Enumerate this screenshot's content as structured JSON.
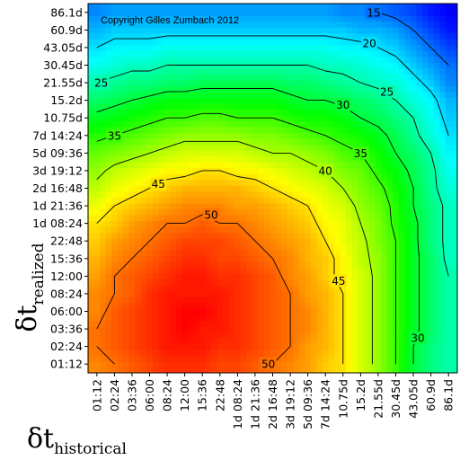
{
  "chart_data": {
    "type": "heatmap",
    "subtype": "contour",
    "title": "",
    "copyright": "Copyright Gilles Zumbach 2012",
    "xlabel": {
      "symbol": "δt",
      "subscript": "historical"
    },
    "ylabel": {
      "symbol": "δt",
      "subscript": "realized"
    },
    "x_ticks": [
      "01:12",
      "02:24",
      "03:36",
      "06:00",
      "08:24",
      "12:00",
      "15:36",
      "22:48",
      "1d 08:24",
      "1d 21:36",
      "2d 16:48",
      "3d 19:12",
      "5d 09:36",
      "7d 14:24",
      "10.75d",
      "15.2d",
      "21.55d",
      "30.45d",
      "43.05d",
      "60.9d",
      "86.1d"
    ],
    "y_ticks": [
      "01:12",
      "02:24",
      "03:36",
      "06:00",
      "08:24",
      "12:00",
      "15:36",
      "22:48",
      "1d 08:24",
      "1d 21:36",
      "2d 16:48",
      "3d 19:12",
      "5d 09:36",
      "7d 14:24",
      "10.75d",
      "15.2d",
      "21.55d",
      "30.45d",
      "43.05d",
      "60.9d",
      "86.1d"
    ],
    "contour_levels": [
      15,
      20,
      25,
      30,
      35,
      40,
      45,
      50
    ],
    "contour_labels": [
      "15",
      "20",
      "25",
      "30",
      "35",
      "40",
      "45",
      "50",
      "25",
      "35",
      "45",
      "50",
      "30",
      "35",
      "40",
      "45",
      "50"
    ],
    "colormap": {
      "low_color": "#0000ff",
      "mid_color": "#00ff00",
      "high_color": "#ff0000"
    },
    "value_range": [
      10,
      55
    ],
    "values": [
      [
        49,
        50,
        51,
        52,
        53,
        53,
        53,
        52,
        52,
        51,
        50,
        49,
        48,
        46,
        45,
        42,
        39,
        35,
        30,
        27,
        25
      ],
      [
        50,
        51,
        52,
        53,
        54,
        54,
        54,
        53,
        53,
        52,
        51,
        50,
        48,
        47,
        45,
        42,
        39,
        35,
        30,
        27,
        25
      ],
      [
        50,
        51,
        52,
        53,
        54,
        55,
        54,
        54,
        53,
        52,
        51,
        50,
        49,
        47,
        45,
        42,
        39,
        35,
        31,
        28,
        25
      ],
      [
        49,
        51,
        52,
        53,
        54,
        55,
        55,
        54,
        53,
        52,
        51,
        50,
        49,
        47,
        45,
        42,
        39,
        35,
        31,
        28,
        25
      ],
      [
        49,
        50,
        51,
        53,
        54,
        54,
        54,
        54,
        53,
        52,
        51,
        50,
        48,
        47,
        45,
        42,
        39,
        35,
        31,
        28,
        25
      ],
      [
        48,
        50,
        51,
        52,
        53,
        54,
        54,
        53,
        53,
        52,
        51,
        49,
        48,
        46,
        44,
        42,
        39,
        35,
        31,
        28,
        25
      ],
      [
        47,
        49,
        50,
        51,
        52,
        53,
        53,
        52,
        52,
        51,
        50,
        49,
        47,
        46,
        44,
        41,
        39,
        35,
        31,
        28,
        24
      ],
      [
        46,
        48,
        49,
        50,
        51,
        52,
        52,
        52,
        51,
        50,
        49,
        48,
        47,
        45,
        43,
        41,
        38,
        35,
        31,
        27,
        24
      ],
      [
        45,
        46,
        48,
        49,
        50,
        50,
        51,
        50,
        50,
        49,
        48,
        47,
        46,
        44,
        43,
        40,
        38,
        34,
        31,
        27,
        24
      ],
      [
        43,
        45,
        46,
        47,
        48,
        49,
        49,
        49,
        48,
        48,
        47,
        46,
        45,
        43,
        42,
        39,
        37,
        34,
        30,
        27,
        24
      ],
      [
        41,
        43,
        44,
        45,
        46,
        47,
        47,
        47,
        47,
        46,
        45,
        44,
        43,
        42,
        40,
        38,
        36,
        33,
        30,
        26,
        23
      ],
      [
        39,
        41,
        42,
        43,
        44,
        44,
        45,
        45,
        44,
        44,
        43,
        42,
        41,
        40,
        38,
        37,
        34,
        32,
        29,
        26,
        22
      ],
      [
        37,
        38,
        39,
        40,
        41,
        42,
        42,
        42,
        42,
        41,
        40,
        40,
        39,
        38,
        36,
        35,
        33,
        30,
        28,
        25,
        21
      ],
      [
        34,
        35,
        36,
        37,
        38,
        39,
        39,
        39,
        39,
        38,
        38,
        37,
        36,
        35,
        34,
        33,
        31,
        29,
        26,
        23,
        20
      ],
      [
        31,
        32,
        33,
        34,
        35,
        35,
        36,
        36,
        35,
        35,
        35,
        34,
        33,
        33,
        32,
        30,
        29,
        27,
        25,
        22,
        19
      ],
      [
        28,
        29,
        30,
        31,
        32,
        32,
        32,
        32,
        32,
        32,
        32,
        31,
        30,
        30,
        29,
        28,
        27,
        25,
        23,
        21,
        18
      ],
      [
        25,
        26,
        27,
        27,
        28,
        28,
        29,
        29,
        29,
        29,
        29,
        28,
        28,
        27,
        26,
        25,
        24,
        23,
        21,
        19,
        16
      ],
      [
        22,
        23,
        24,
        24,
        25,
        25,
        25,
        25,
        25,
        25,
        25,
        25,
        25,
        24,
        24,
        23,
        22,
        21,
        19,
        17,
        15
      ],
      [
        20,
        21,
        21,
        21,
        22,
        22,
        22,
        22,
        22,
        22,
        22,
        22,
        22,
        22,
        21,
        21,
        20,
        19,
        17,
        15,
        13
      ],
      [
        18,
        19,
        19,
        19,
        19,
        19,
        19,
        19,
        19,
        19,
        19,
        19,
        19,
        19,
        19,
        18,
        18,
        17,
        15,
        13,
        11
      ],
      [
        16,
        17,
        17,
        17,
        17,
        17,
        17,
        17,
        17,
        17,
        17,
        17,
        17,
        17,
        16,
        16,
        15,
        14,
        13,
        11,
        10
      ]
    ]
  }
}
